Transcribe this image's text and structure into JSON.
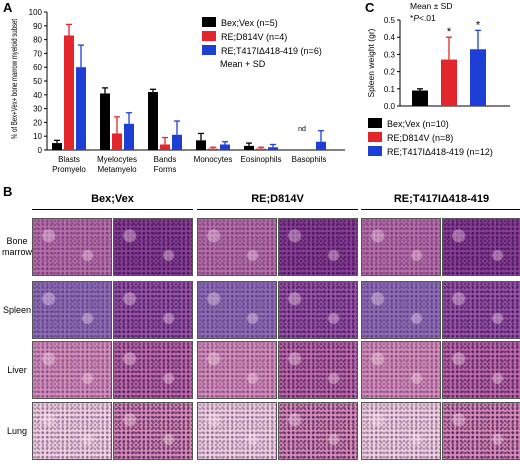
{
  "panel_A": {
    "letter": "A"
  },
  "panel_B": {
    "letter": "B",
    "groups": [
      "Bex;Vex",
      "RE;D814V",
      "RE;T417IΔ418-419"
    ],
    "rows": [
      [
        "Bone",
        "marrow"
      ],
      [
        "Spleen"
      ],
      [
        "Liver"
      ],
      [
        "Lung"
      ]
    ],
    "tile_colors": {
      "Bone": {
        "low": "#b96fa8",
        "high": "#8a3f93"
      },
      "Spleen": {
        "low": "#8e6fb6",
        "high": "#9a55a6"
      },
      "Liver": {
        "low": "#d78fb8",
        "high": "#c06ca8"
      },
      "Lung": {
        "low": "#f2d4e1",
        "high": "#d98fb4"
      }
    }
  },
  "panel_C": {
    "letter": "C"
  },
  "chart_data": [
    {
      "type": "bar",
      "ylabel": "% of Bex+Vex+ bone marrow myeloid subset",
      "ylim": [
        0,
        100
      ],
      "yticks": [
        0,
        10,
        20,
        30,
        40,
        50,
        60,
        70,
        80,
        90,
        100
      ],
      "categories": [
        [
          "Blasts",
          "Promyelo"
        ],
        [
          "Myelocytes",
          "Metamyelo"
        ],
        [
          "Bands",
          "Forms"
        ],
        [
          "Monocytes"
        ],
        [
          "Eosinophils"
        ],
        [
          "Basophils"
        ]
      ],
      "series": [
        {
          "name": "Bex;Vex (n=5)",
          "color": "#000000",
          "values": [
            5,
            41,
            42,
            7,
            3,
            null
          ],
          "sd": [
            2,
            4,
            2,
            5,
            2,
            null
          ]
        },
        {
          "name": "RE;D814V (n=4)",
          "color": "#e3262b",
          "values": [
            83,
            12,
            4,
            1,
            1,
            null
          ],
          "sd": [
            8,
            12,
            5,
            1,
            1,
            null
          ]
        },
        {
          "name": "RE;T417IΔ418-419 (n=6)",
          "color": "#1e3fd6",
          "values": [
            60,
            19,
            11,
            4,
            2,
            6
          ],
          "sd": [
            16,
            8,
            10,
            2,
            2,
            8
          ]
        }
      ],
      "annotation": "nd",
      "legend_note": "Mean + SD",
      "legend": "top-right"
    },
    {
      "type": "bar",
      "ylabel": "Spleen weight (gr)",
      "ylim": [
        0,
        0.5
      ],
      "yticks": [
        "0.0",
        "0.1",
        "0.2",
        "0.3",
        "0.4",
        "0.5"
      ],
      "categories": [
        "Bex;Vex",
        "RE;D814V",
        "RE;T417IΔ418-419"
      ],
      "values": [
        0.09,
        0.27,
        0.33
      ],
      "sd": [
        0.01,
        0.13,
        0.11
      ],
      "significance": [
        "",
        "*",
        "*"
      ],
      "colors": [
        "#000000",
        "#e3262b",
        "#1e3fd6"
      ],
      "legend_entries": [
        "Bex;Vex (n=10)",
        "RE;D814V (n=8)",
        "RE;T417IΔ418-419 (n=12)"
      ],
      "note_line1": "Mean ± SD",
      "note_line2_prefix": "*",
      "note_line2_italic": "P",
      "note_line2_suffix": "<.01"
    }
  ]
}
